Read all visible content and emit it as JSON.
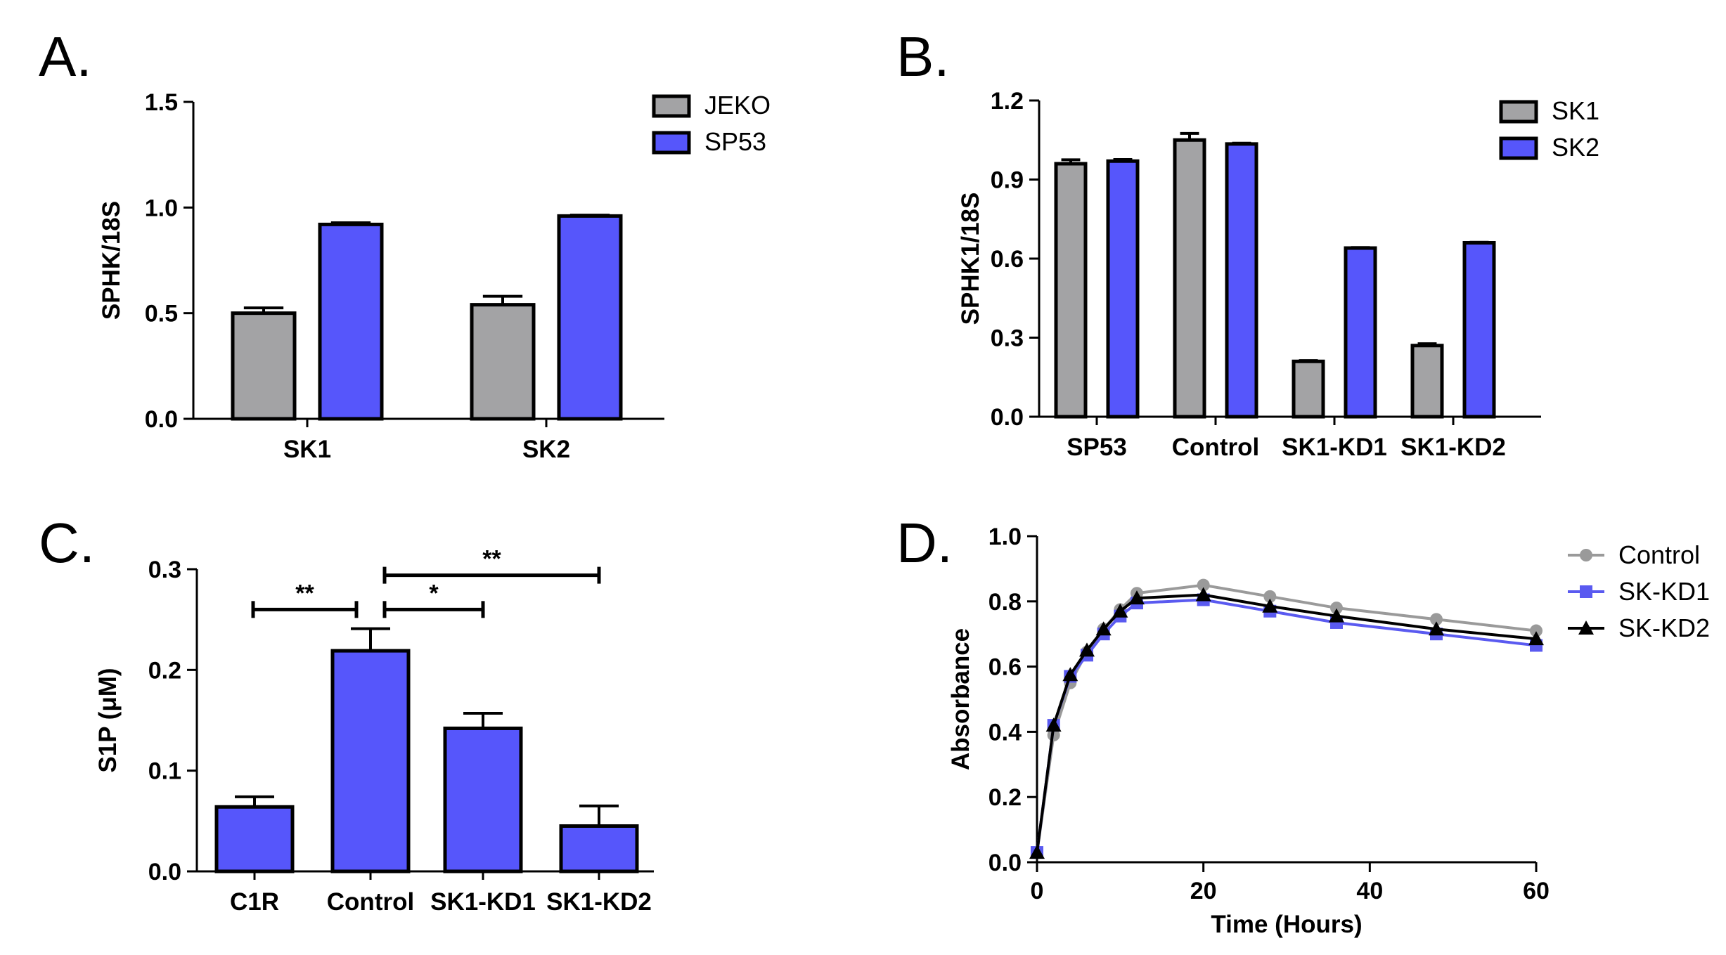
{
  "colors": {
    "grey": "#a3a3a5",
    "blue": "#5656fb",
    "line_grey": "#9a9a9a",
    "line_blue": "#5a5af0",
    "black": "#000000"
  },
  "chart_data": [
    {
      "id": "A",
      "panel_label": "A.",
      "type": "bar",
      "ylabel": "SPHK/18S",
      "ylim": [
        0,
        1.5
      ],
      "yticks": [
        "0.0",
        "0.5",
        "1.0",
        "1.5"
      ],
      "categories": [
        "SK1",
        "SK2"
      ],
      "series": [
        {
          "name": "JEKO",
          "color": "grey",
          "values": [
            0.5,
            0.54
          ],
          "errors": [
            0.025,
            0.04
          ]
        },
        {
          "name": "SP53",
          "color": "blue",
          "values": [
            0.92,
            0.96
          ],
          "errors": [
            0.008,
            0.004
          ]
        }
      ],
      "legend_position": "top-right"
    },
    {
      "id": "B",
      "panel_label": "B.",
      "type": "bar",
      "ylabel": "SPHK1/18S",
      "ylim": [
        0,
        1.2
      ],
      "yticks": [
        "0.0",
        "0.3",
        "0.6",
        "0.9",
        "1.2"
      ],
      "categories": [
        "SP53",
        "Control",
        "SK1-KD1",
        "SK1-KD2"
      ],
      "series": [
        {
          "name": "SK1",
          "color": "grey",
          "values": [
            0.96,
            1.05,
            0.21,
            0.27
          ],
          "errors": [
            0.015,
            0.025,
            0.003,
            0.007
          ]
        },
        {
          "name": "SK2",
          "color": "blue",
          "values": [
            0.97,
            1.035,
            0.64,
            0.66
          ],
          "errors": [
            0.006,
            0.003,
            0.002,
            0.002
          ]
        }
      ],
      "legend_position": "top-right"
    },
    {
      "id": "C",
      "panel_label": "C.",
      "type": "bar",
      "ylabel": "S1P (μM)",
      "ylim": [
        0,
        0.3
      ],
      "yticks": [
        "0.0",
        "0.1",
        "0.2",
        "0.3"
      ],
      "categories": [
        "C1R",
        "Control",
        "SK1-KD1",
        "SK1-KD2"
      ],
      "series": [
        {
          "name": "S1P",
          "color": "blue",
          "values": [
            0.064,
            0.219,
            0.142,
            0.045
          ],
          "errors": [
            0.01,
            0.022,
            0.015,
            0.02
          ]
        }
      ],
      "significance": [
        {
          "from": 0,
          "to": 1,
          "label": "**",
          "y": 0.26
        },
        {
          "from": 1,
          "to": 2,
          "label": "*",
          "y": 0.26
        },
        {
          "from": 1,
          "to": 3,
          "label": "**",
          "y": 0.294
        }
      ]
    },
    {
      "id": "D",
      "panel_label": "D.",
      "type": "line",
      "xlabel": "Time (Hours)",
      "ylabel": "Absorbance",
      "xlim": [
        0,
        60
      ],
      "ylim": [
        0,
        1.0
      ],
      "xticks": [
        "0",
        "20",
        "40",
        "60"
      ],
      "yticks": [
        "0.0",
        "0.2",
        "0.4",
        "0.6",
        "0.8",
        "1.0"
      ],
      "x": [
        0,
        2,
        4,
        6,
        8,
        10,
        12,
        20,
        28,
        36,
        48,
        60
      ],
      "series": [
        {
          "name": "Control",
          "color": "line_grey",
          "marker": "circle",
          "values": [
            0.03,
            0.39,
            0.55,
            0.645,
            0.715,
            0.775,
            0.825,
            0.85,
            0.815,
            0.78,
            0.745,
            0.71
          ]
        },
        {
          "name": "SK-KD1",
          "color": "line_blue",
          "marker": "square",
          "values": [
            0.03,
            0.42,
            0.57,
            0.635,
            0.7,
            0.755,
            0.795,
            0.805,
            0.77,
            0.735,
            0.7,
            0.665
          ]
        },
        {
          "name": "SK-KD2",
          "color": "black",
          "marker": "triangle",
          "values": [
            0.03,
            0.42,
            0.575,
            0.65,
            0.715,
            0.77,
            0.81,
            0.82,
            0.785,
            0.755,
            0.715,
            0.685
          ]
        }
      ]
    }
  ]
}
